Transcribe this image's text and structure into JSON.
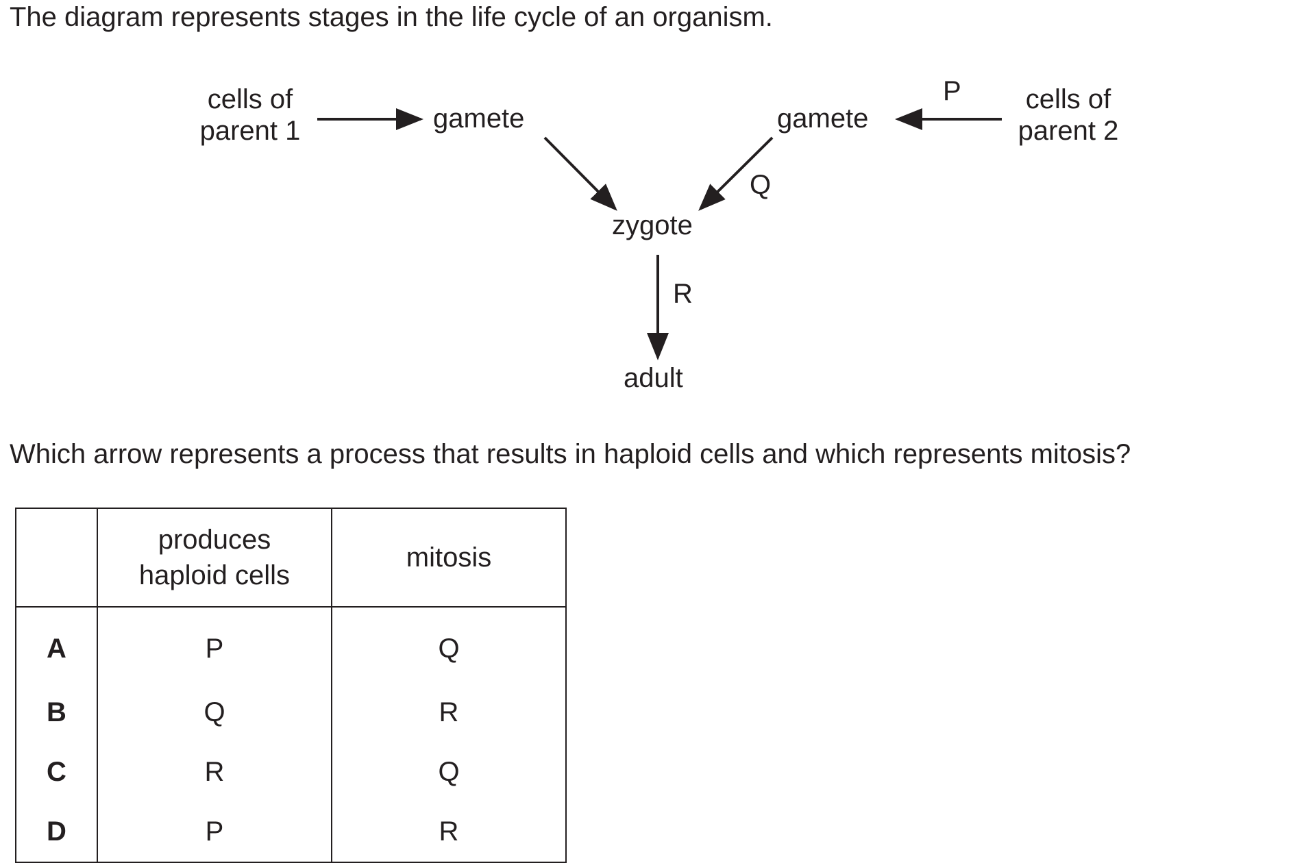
{
  "intro": "The diagram represents stages in the life cycle of an organism.",
  "diagram": {
    "parent1": [
      "cells of",
      "parent 1"
    ],
    "parent2": [
      "cells of",
      "parent 2"
    ],
    "gamete_left": "gamete",
    "gamete_right": "gamete",
    "zygote": "zygote",
    "adult": "adult",
    "label_p": "P",
    "label_q": "Q",
    "label_r": "R"
  },
  "question": "Which arrow represents a process that results in haploid cells and which represents mitosis?",
  "table": {
    "header": [
      "",
      "produces haploid cells",
      "mitosis"
    ],
    "header_lines": [
      "produces",
      "haploid cells"
    ],
    "rows": [
      {
        "option": "A",
        "haploid": "P",
        "mitosis": "Q"
      },
      {
        "option": "B",
        "haploid": "Q",
        "mitosis": "R"
      },
      {
        "option": "C",
        "haploid": "R",
        "mitosis": "Q"
      },
      {
        "option": "D",
        "haploid": "P",
        "mitosis": "R"
      }
    ]
  }
}
